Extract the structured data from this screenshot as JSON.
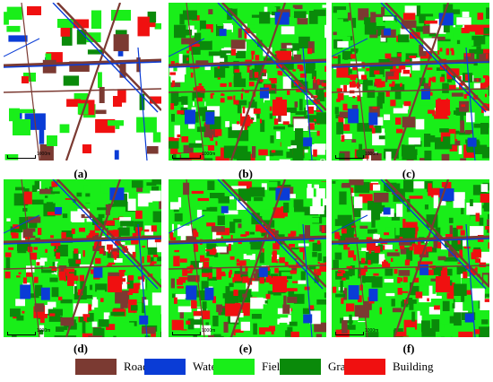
{
  "panels": [
    {
      "label": "(a)",
      "scale_text": "1000m",
      "kind": "ground-truth"
    },
    {
      "label": "(b)",
      "scale_text": "1000m",
      "kind": "prediction"
    },
    {
      "label": "(c)",
      "scale_text": "1000m",
      "kind": "prediction"
    },
    {
      "label": "(d)",
      "scale_text": "1000m",
      "kind": "prediction"
    },
    {
      "label": "(e)",
      "scale_text": "1000m",
      "kind": "prediction"
    },
    {
      "label": "(f)",
      "scale_text": "1000m",
      "kind": "prediction"
    }
  ],
  "legend": [
    {
      "label": "Road",
      "color": "#7b3a32"
    },
    {
      "label": "Water",
      "color": "#0a3cd6"
    },
    {
      "label": "Field",
      "color": "#19ee19"
    },
    {
      "label": "Grass",
      "color": "#0a8a0a"
    },
    {
      "label": "Building",
      "color": "#f01010"
    }
  ]
}
